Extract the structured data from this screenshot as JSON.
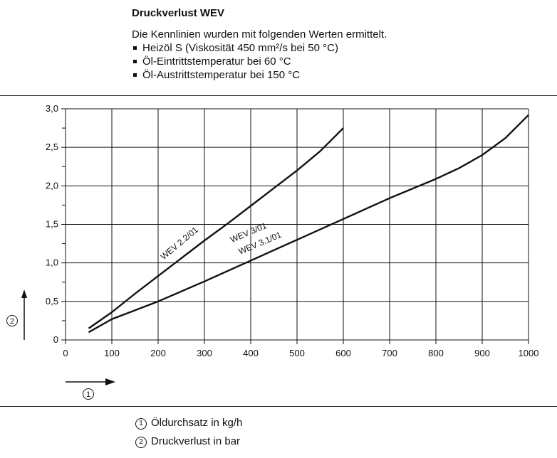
{
  "header": {
    "title": "Druckverlust WEV",
    "intro": "Die Kennlinien wurden mit folgenden Werten ermittelt.",
    "bullets": [
      "Heizöl S (Viskosität 450 mm²/s bei 50 °C)",
      "Öl-Eintrittstemperatur bei 60 °C",
      "Öl-Austrittstemperatur bei 150 °C"
    ]
  },
  "chart_data": {
    "type": "line",
    "xlim": [
      0,
      1000
    ],
    "ylim": [
      0,
      3.0
    ],
    "x_ticks": [
      "0",
      "100",
      "200",
      "300",
      "400",
      "500",
      "600",
      "700",
      "800",
      "900",
      "1000"
    ],
    "y_ticks": [
      "0",
      "0,5",
      "1,0",
      "1,5",
      "2,0",
      "2,5",
      "3,0"
    ],
    "grid": true,
    "x_axis_marker": "①",
    "y_axis_marker": "②",
    "series": [
      {
        "name": "WEV 2.2/01",
        "x": [
          50,
          100,
          150,
          200,
          250,
          300,
          350,
          400,
          450,
          500,
          550,
          600
        ],
        "y": [
          0.15,
          0.36,
          0.6,
          0.83,
          1.06,
          1.29,
          1.51,
          1.74,
          1.97,
          2.2,
          2.45,
          2.75
        ]
      },
      {
        "name": "WEV 3/01\nWEV 3.1/01",
        "x": [
          50,
          100,
          200,
          300,
          400,
          500,
          600,
          700,
          800,
          850,
          900,
          950,
          1000
        ],
        "y": [
          0.1,
          0.27,
          0.5,
          0.76,
          1.03,
          1.3,
          1.57,
          1.84,
          2.09,
          2.23,
          2.4,
          2.62,
          2.92
        ]
      }
    ]
  },
  "legend": [
    {
      "num": "1",
      "text": "Öldurchsatz in kg/h"
    },
    {
      "num": "2",
      "text": "Druckverlust in bar"
    }
  ]
}
